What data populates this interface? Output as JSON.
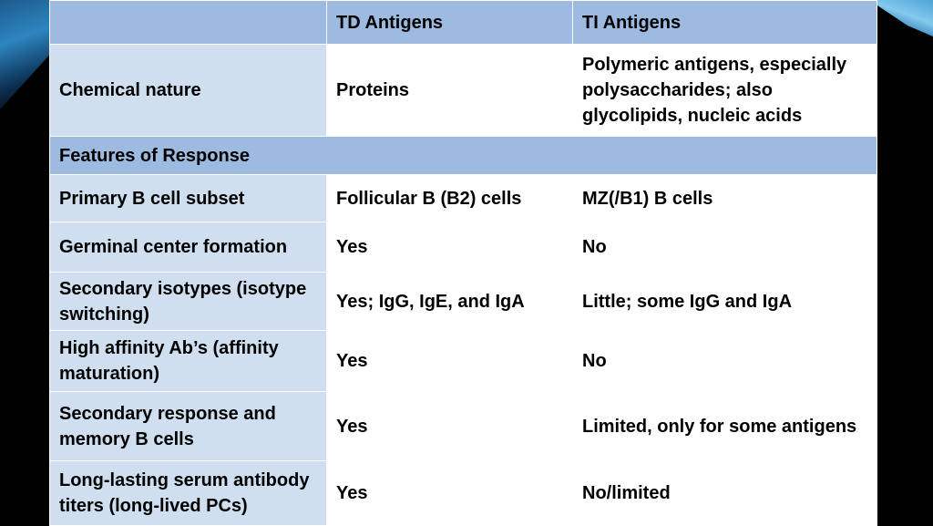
{
  "table": {
    "headers": [
      "",
      "TD Antigens",
      "TI Antigens"
    ],
    "chemical_row": {
      "label": "Chemical nature",
      "td": "Proteins",
      "ti": "Polymeric antigens, especially polysaccharides; also glycolipids, nucleic acids"
    },
    "section_title": "Features of Response",
    "rows": [
      {
        "label": "Primary B cell subset",
        "td": "Follicular B (B2) cells",
        "ti": "MZ(/B1) B cells"
      },
      {
        "label": "Germinal center formation",
        "td": "Yes",
        "ti": "No"
      },
      {
        "label": "Secondary isotypes (isotype switching)",
        "td": "Yes; IgG, IgE, and IgA",
        "ti": "Little; some IgG and IgA"
      },
      {
        "label": "High affinity Ab’s (affinity maturation)",
        "td": "Yes",
        "ti": "No"
      },
      {
        "label": "Secondary response and memory B cells",
        "td": "Yes",
        "ti": "Limited, only for some antigens"
      },
      {
        "label": "Long-lasting serum antibody titers (long-lived PCs)",
        "td": "Yes",
        "ti": "No/limited"
      }
    ]
  }
}
